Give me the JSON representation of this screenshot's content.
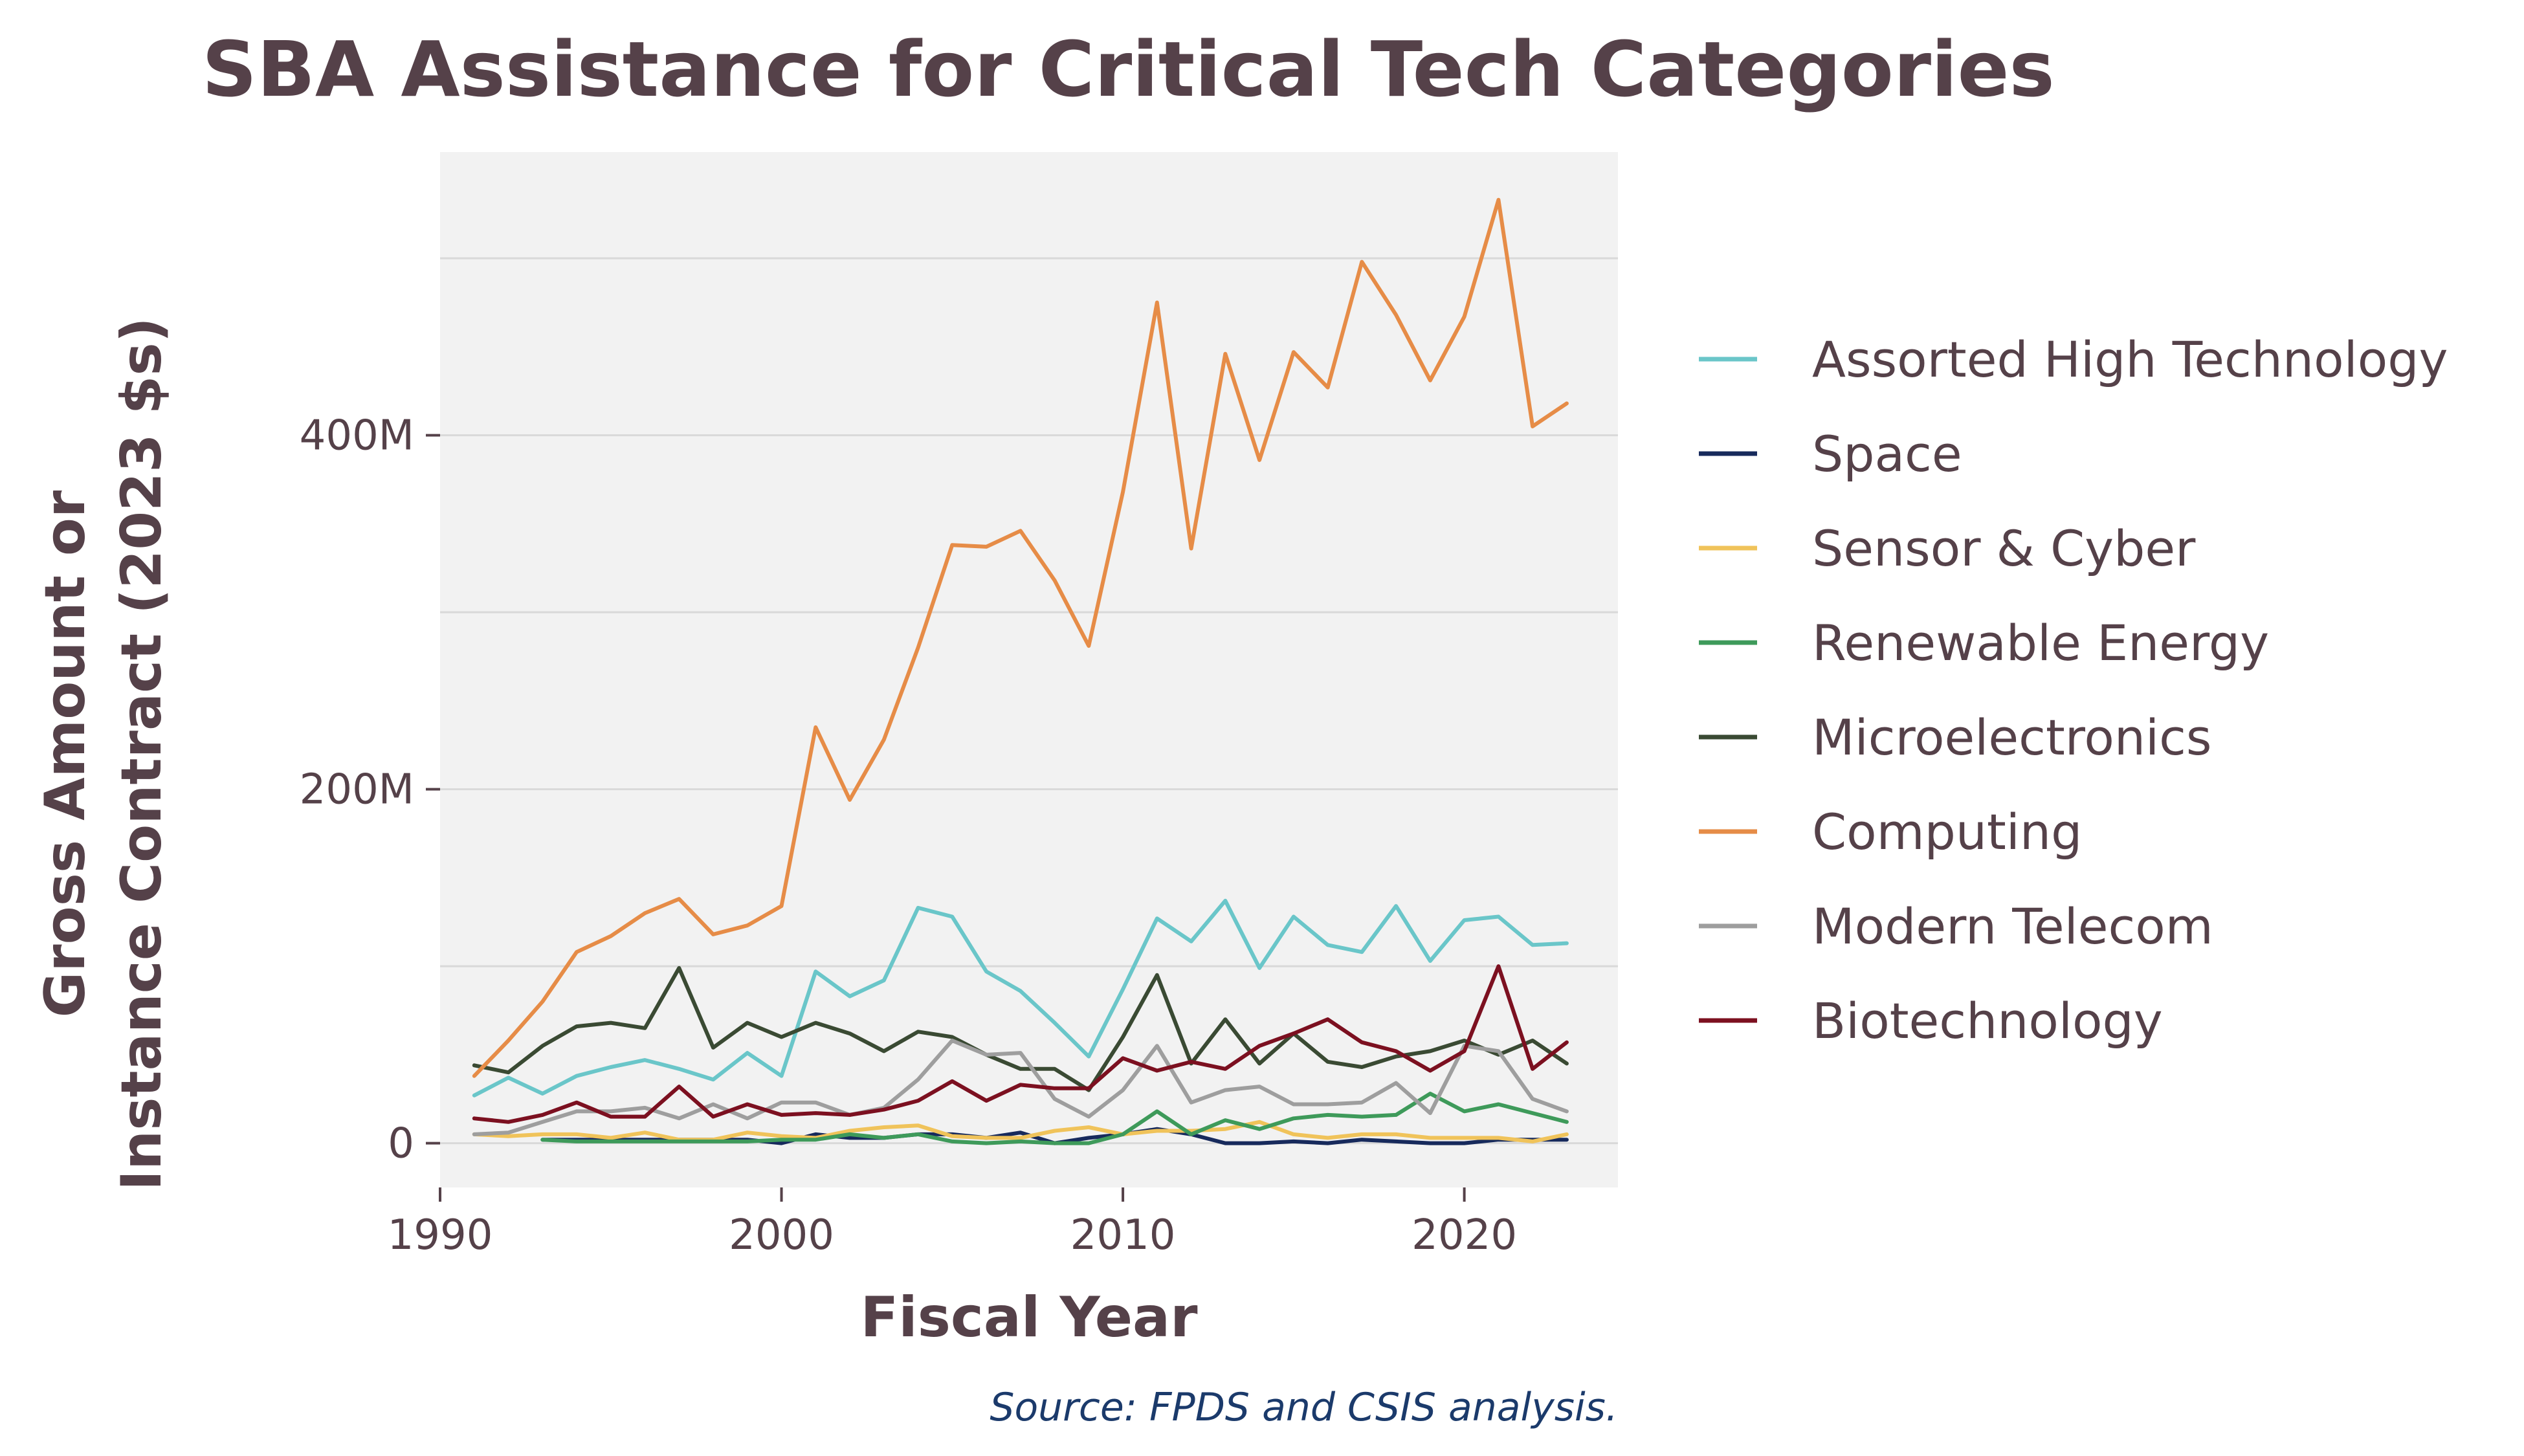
{
  "chart_data": {
    "type": "line",
    "title": "SBA Assistance for Critical Tech Categories",
    "xlabel": "Fiscal Year",
    "ylabel": [
      "Gross Amount or",
      "Instance Contract (2023 $s)"
    ],
    "source": "Source: FPDS and CSIS analysis.",
    "xlim": [
      1990,
      2024.5
    ],
    "ylim": [
      -25,
      560
    ],
    "xticks": [
      1990,
      2000,
      2010,
      2020
    ],
    "xtick_labels": [
      "1990",
      "2000",
      "2010",
      "2020"
    ],
    "yticks": [
      0,
      200,
      400
    ],
    "ytick_labels": [
      "0",
      "200M",
      "400M"
    ],
    "ygrid_minor": [
      100,
      300,
      500
    ],
    "y_units": "millions of 2023 dollars",
    "grid": true,
    "legend_position": "right",
    "plot_background": "#f2f2f2",
    "x": [
      1991,
      1992,
      1993,
      1994,
      1995,
      1996,
      1997,
      1998,
      1999,
      2000,
      2001,
      2002,
      2003,
      2004,
      2005,
      2006,
      2007,
      2008,
      2009,
      2010,
      2011,
      2012,
      2013,
      2014,
      2015,
      2016,
      2017,
      2018,
      2019,
      2020,
      2021,
      2022,
      2023
    ],
    "series": [
      {
        "name": "Assorted High Technology",
        "color": "#6ac6c9",
        "values": [
          27,
          37,
          28,
          38,
          43,
          47,
          42,
          36,
          51,
          38,
          97,
          83,
          92,
          133,
          128,
          97,
          86,
          68,
          49,
          87,
          127,
          114,
          137,
          99,
          128,
          112,
          108,
          134,
          103,
          126,
          128,
          112,
          113
        ]
      },
      {
        "name": "Space",
        "color": "#172a5c",
        "values": [
          null,
          null,
          2,
          2,
          2,
          2,
          2,
          2,
          2,
          0,
          5,
          3,
          3,
          5,
          5,
          3,
          6,
          0,
          3,
          5,
          8,
          5,
          0,
          0,
          1,
          0,
          2,
          1,
          0,
          0,
          2,
          2,
          2
        ]
      },
      {
        "name": "Sensor & Cyber",
        "color": "#f0c35a",
        "values": [
          5,
          4,
          5,
          5,
          3,
          6,
          2,
          2,
          6,
          4,
          3,
          7,
          9,
          10,
          4,
          3,
          3,
          7,
          9,
          5,
          7,
          7,
          8,
          12,
          5,
          3,
          5,
          5,
          3,
          3,
          3,
          1,
          5
        ]
      },
      {
        "name": "Renewable Energy",
        "color": "#3e9a5a",
        "values": [
          null,
          null,
          2,
          1,
          1,
          1,
          1,
          1,
          1,
          2,
          2,
          5,
          3,
          5,
          1,
          0,
          1,
          0,
          0,
          5,
          18,
          5,
          13,
          8,
          14,
          16,
          15,
          16,
          28,
          18,
          22,
          17,
          12
        ]
      },
      {
        "name": "Microelectronics",
        "color": "#3a4a33",
        "values": [
          44,
          40,
          55,
          66,
          68,
          65,
          99,
          54,
          68,
          60,
          68,
          62,
          52,
          63,
          60,
          50,
          42,
          42,
          30,
          60,
          95,
          45,
          70,
          45,
          62,
          46,
          43,
          49,
          52,
          58,
          50,
          58,
          45
        ]
      },
      {
        "name": "Computing",
        "color": "#e68c47",
        "values": [
          38,
          58,
          80,
          108,
          117,
          130,
          138,
          118,
          123,
          134,
          235,
          194,
          228,
          280,
          338,
          337,
          346,
          318,
          281,
          368,
          475,
          336,
          446,
          386,
          447,
          427,
          498,
          468,
          431,
          467,
          533,
          405,
          418
        ]
      },
      {
        "name": "Modern Telecom",
        "color": "#9e9e9e",
        "values": [
          5,
          6,
          12,
          18,
          18,
          20,
          14,
          22,
          14,
          23,
          23,
          16,
          20,
          36,
          58,
          50,
          51,
          25,
          15,
          30,
          55,
          23,
          30,
          32,
          22,
          22,
          23,
          34,
          17,
          55,
          52,
          25,
          18
        ]
      },
      {
        "name": "Biotechnology",
        "color": "#7c1020",
        "values": [
          14,
          12,
          16,
          23,
          15,
          15,
          32,
          15,
          22,
          16,
          17,
          16,
          19,
          24,
          35,
          24,
          33,
          31,
          31,
          48,
          41,
          46,
          42,
          55,
          62,
          70,
          57,
          52,
          41,
          52,
          100,
          42,
          57
        ]
      }
    ]
  }
}
